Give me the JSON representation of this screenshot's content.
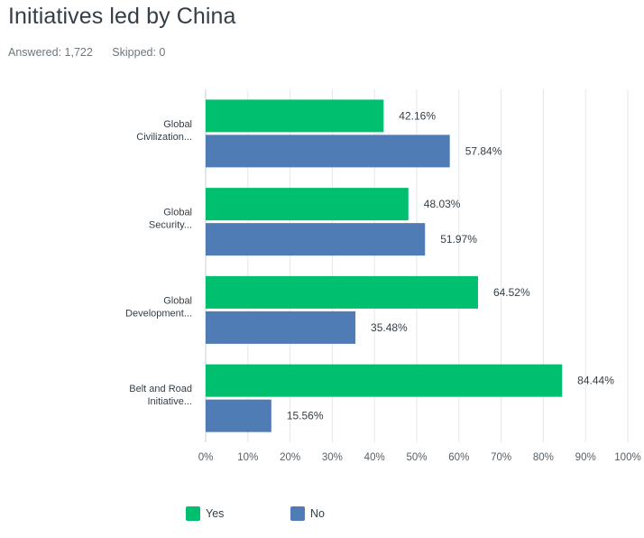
{
  "header": {
    "title": "Initiatives led by China",
    "answered": "Answered: 1,722",
    "skipped": "Skipped: 0"
  },
  "colors": {
    "yes": "#00bf6f",
    "no": "#507cb6"
  },
  "chart_data": {
    "type": "bar",
    "orientation": "horizontal",
    "title": "Initiatives led by China",
    "categories": [
      "Global Civilization...",
      "Global Security...",
      "Global Development...",
      "Belt and Road Initiative..."
    ],
    "category_lines": [
      [
        "Global",
        "Civilization..."
      ],
      [
        "Global",
        "Security..."
      ],
      [
        "Global",
        "Development..."
      ],
      [
        "Belt and Road",
        "Initiative..."
      ]
    ],
    "series": [
      {
        "name": "Yes",
        "values": [
          42.16,
          48.03,
          64.52,
          84.44
        ],
        "labels": [
          "42.16%",
          "48.03%",
          "64.52%",
          "84.44%"
        ]
      },
      {
        "name": "No",
        "values": [
          57.84,
          51.97,
          35.48,
          15.56
        ],
        "labels": [
          "57.84%",
          "51.97%",
          "35.48%",
          "15.56%"
        ]
      }
    ],
    "xlim": [
      0,
      100
    ],
    "ticks": [
      0,
      10,
      20,
      30,
      40,
      50,
      60,
      70,
      80,
      90,
      100
    ],
    "tick_labels": [
      "0%",
      "10%",
      "20%",
      "30%",
      "40%",
      "50%",
      "60%",
      "70%",
      "80%",
      "90%",
      "100%"
    ],
    "grid": true,
    "legend_position": "bottom"
  }
}
